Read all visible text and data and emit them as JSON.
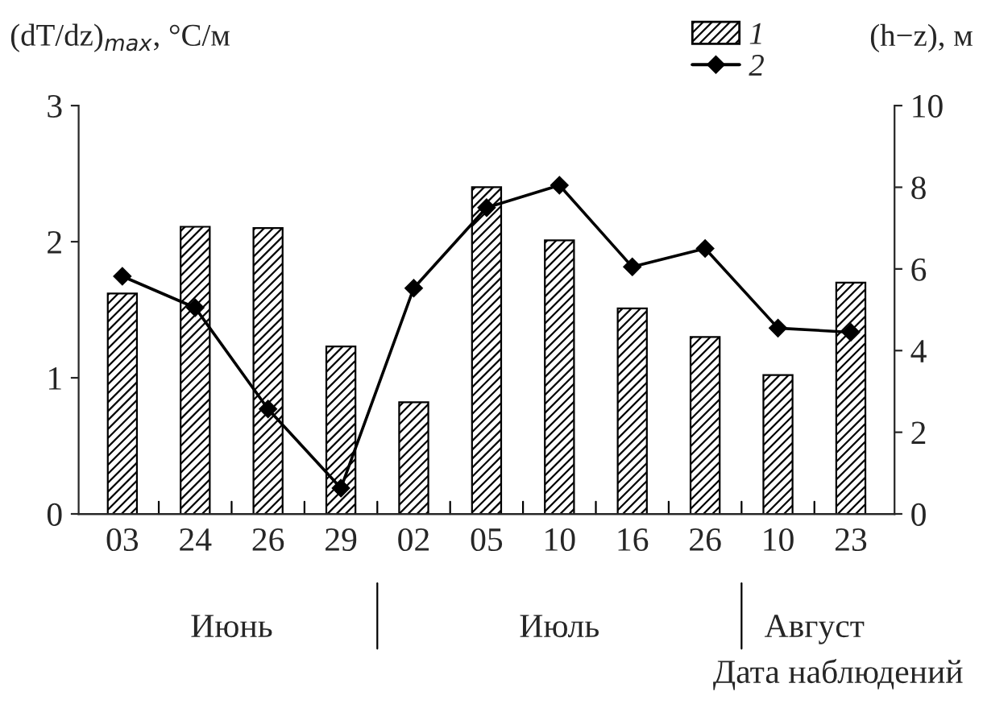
{
  "chart_data": {
    "type": "bar",
    "categories": [
      "03",
      "24",
      "26",
      "29",
      "02",
      "05",
      "10",
      "16",
      "26",
      "10",
      "23"
    ],
    "series": [
      {
        "name": "1",
        "color": "#000000",
        "values": [
          1.62,
          2.11,
          2.1,
          1.23,
          0.82,
          2.4,
          2.01,
          1.51,
          1.3,
          1.02,
          1.7
        ]
      },
      {
        "name": "2",
        "type": "line",
        "axis": "y2",
        "color": "#000000",
        "marker": "diamond",
        "values": [
          5.82,
          5.05,
          2.57,
          0.63,
          5.53,
          7.5,
          8.05,
          6.05,
          6.5,
          4.55,
          4.45
        ]
      }
    ],
    "ylabel": "(dT/dz)$_{max}$, °C/м",
    "y2label": "(h−z), м",
    "xlabel": "Дата наблюдений",
    "annotations": [
      "Июнь",
      "Июль",
      "Август"
    ],
    "ylim": [
      0,
      3
    ],
    "yticks": [
      0,
      1,
      2,
      3
    ],
    "y2lim": [
      0,
      10
    ],
    "y2ticks": [
      0,
      2,
      4,
      6,
      8,
      10
    ],
    "grid": false,
    "legend": "top right"
  }
}
